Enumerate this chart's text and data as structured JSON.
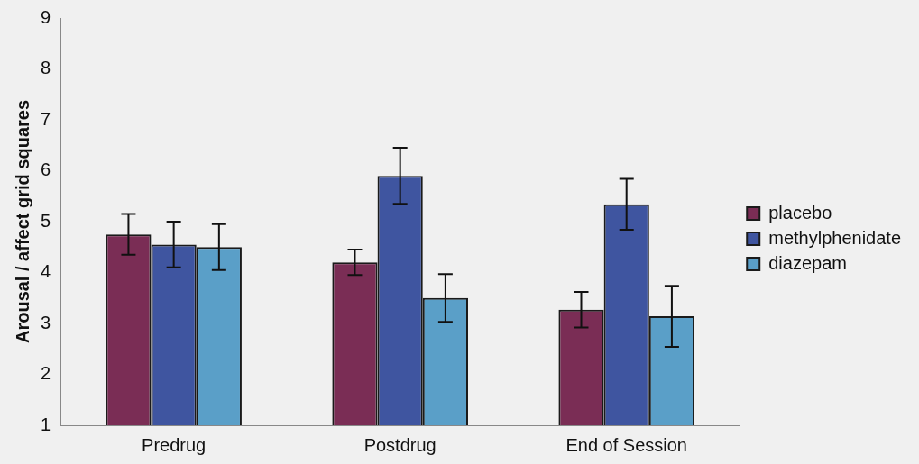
{
  "chart_data": {
    "type": "bar",
    "ylabel": "Arousal / affect grid squares",
    "categories": [
      "Predrug",
      "Postdrug",
      "End of Session"
    ],
    "series": [
      {
        "name": "placebo",
        "color": "#7a2d55",
        "values": [
          4.75,
          4.2,
          3.27
        ],
        "errors": [
          0.4,
          0.25,
          0.35
        ]
      },
      {
        "name": "methylphenidate",
        "color": "#3f55a0",
        "values": [
          4.55,
          5.9,
          5.34
        ],
        "errors": [
          0.45,
          0.55,
          0.5
        ]
      },
      {
        "name": "diazepam",
        "color": "#5a9fc8",
        "values": [
          4.5,
          3.5,
          3.14
        ],
        "errors": [
          0.45,
          0.47,
          0.6
        ]
      }
    ],
    "ylim": [
      1,
      9
    ],
    "yticks": [
      1,
      2,
      3,
      4,
      5,
      6,
      7,
      8,
      9
    ],
    "grid": false,
    "legend": "right"
  }
}
